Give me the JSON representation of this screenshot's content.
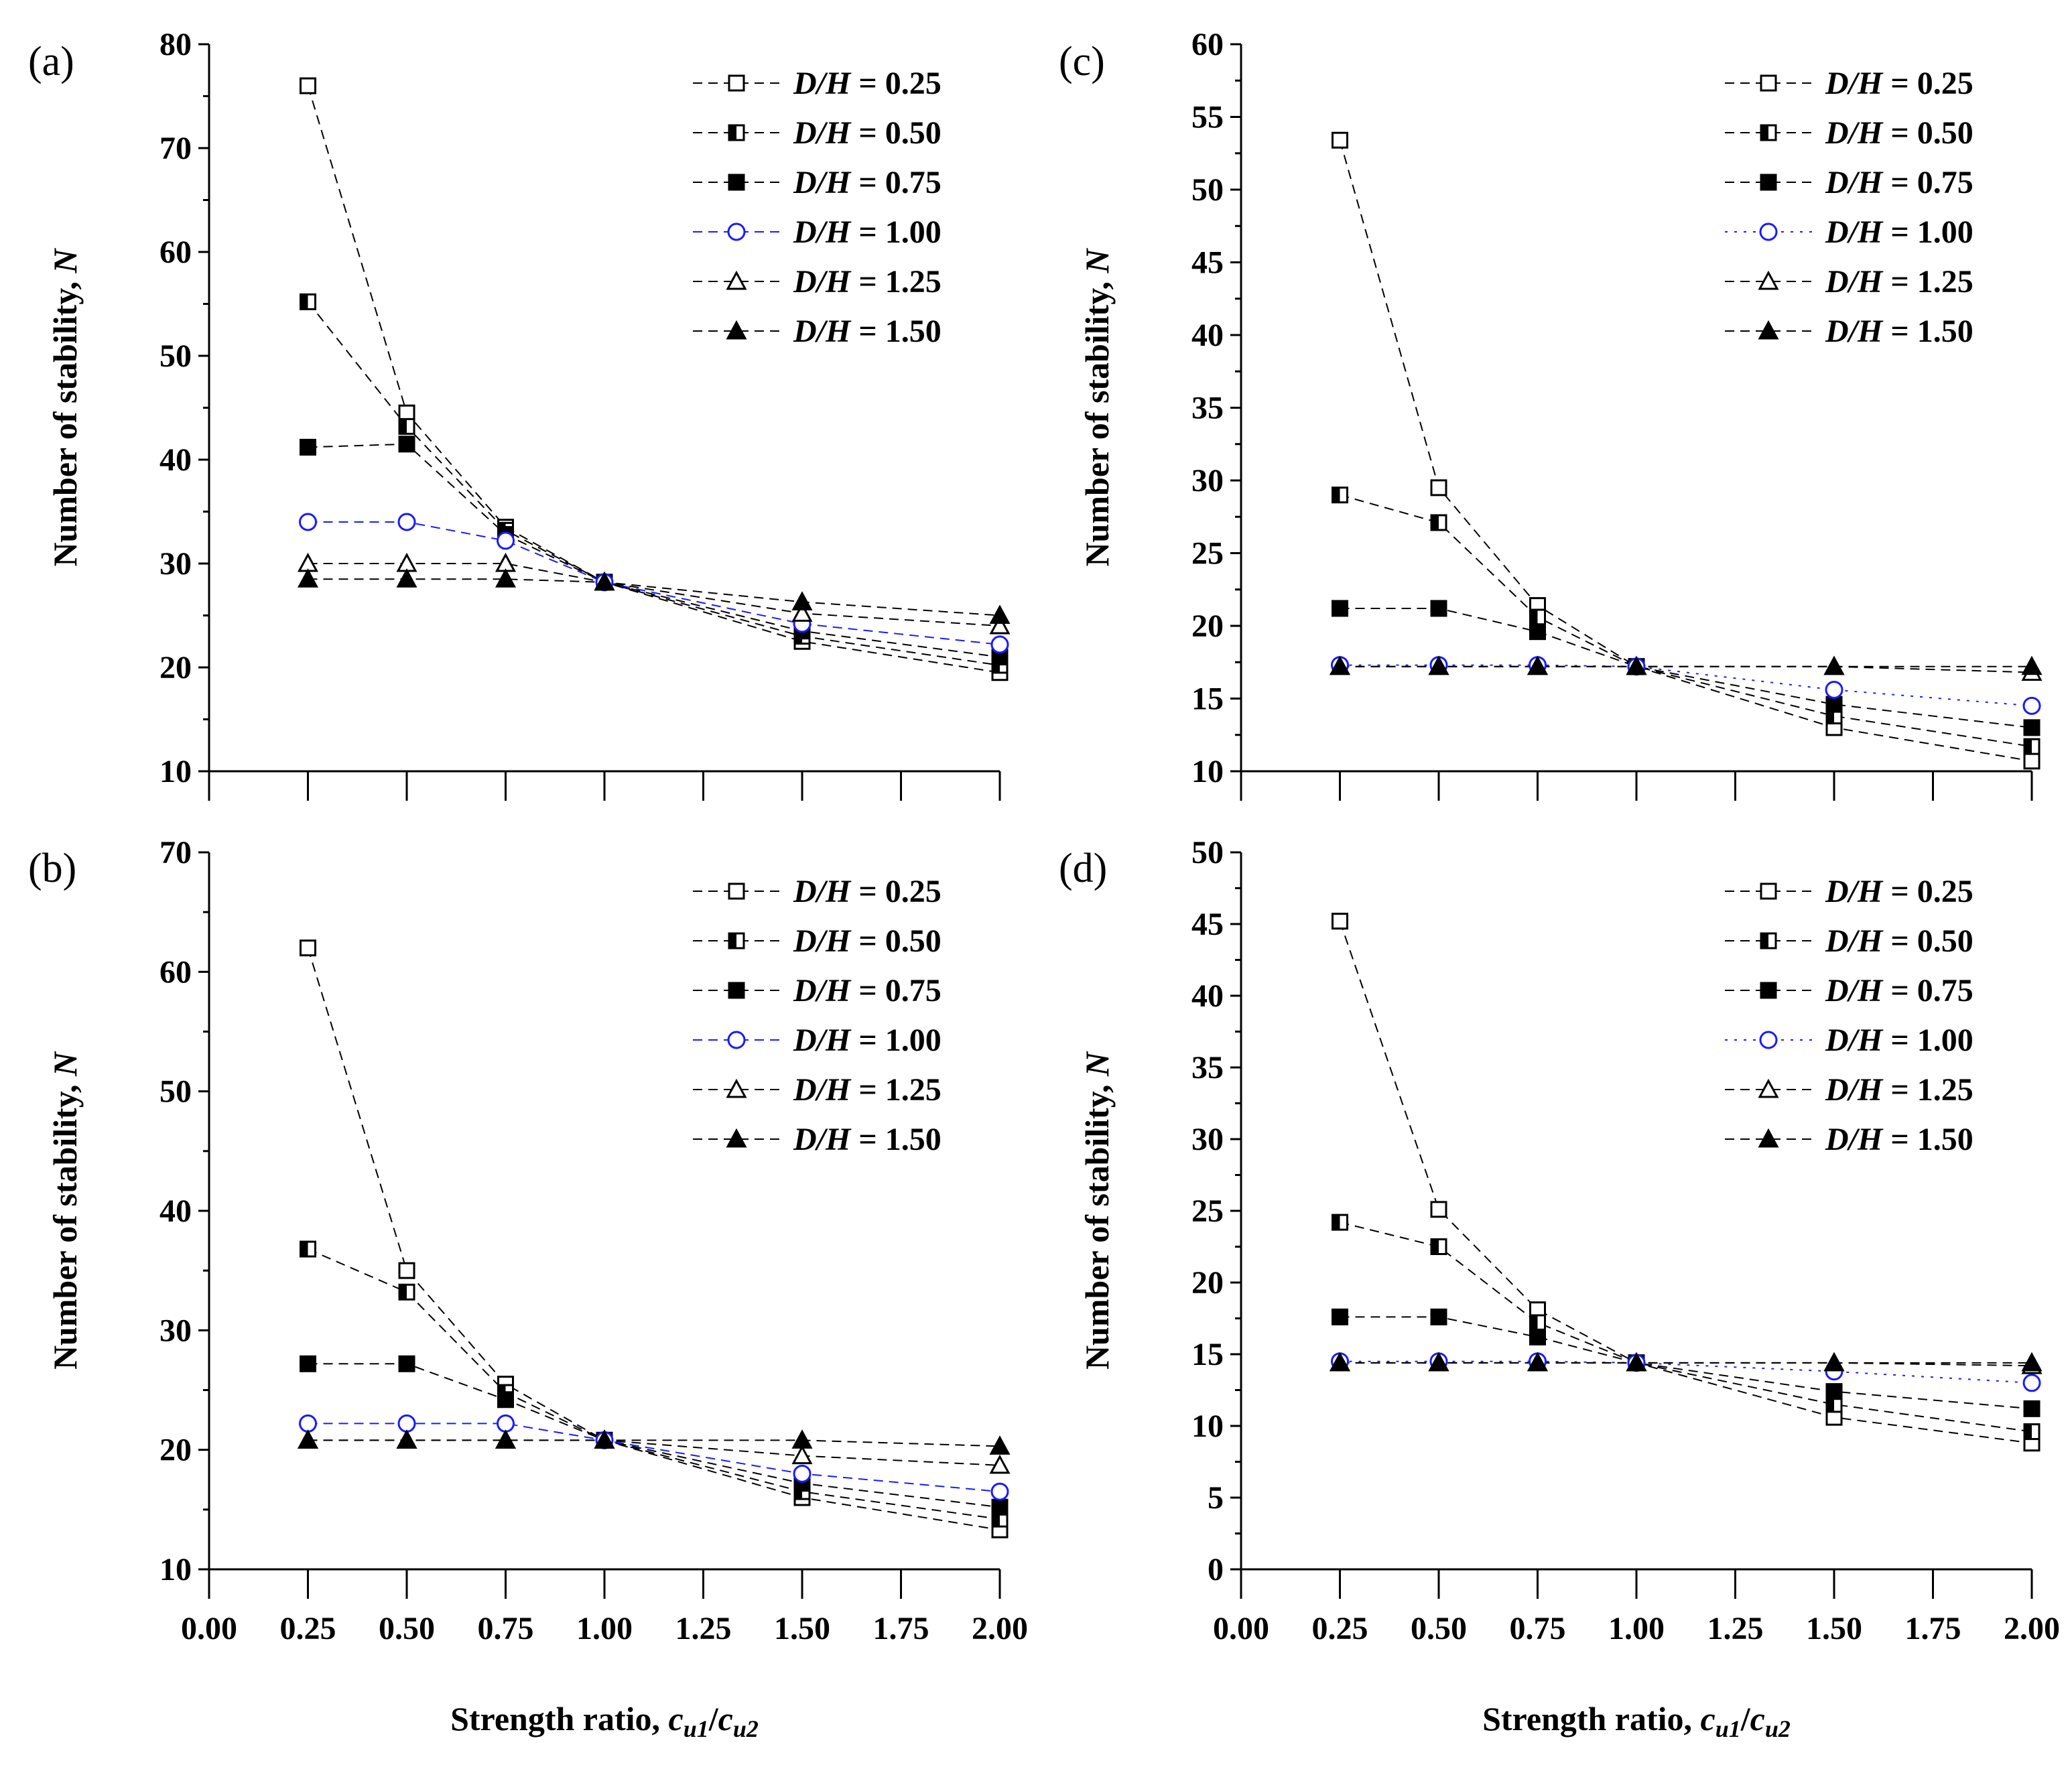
{
  "figure": {
    "y_axis_title": "Number of stability, ",
    "y_axis_symbol": "N",
    "x_axis_title": "Strength ratio, ",
    "x_axis_symbol_num": "c",
    "x_axis_sub_num": "u1",
    "x_axis_slash": "/",
    "x_axis_symbol_den": "c",
    "x_axis_sub_den": "u2",
    "legend_var_D": "D",
    "legend_var_slash": "/",
    "legend_var_H": "H",
    "legend_eq": " = "
  },
  "chart_data": [
    {
      "type": "line",
      "panel": "(a)",
      "xlabel": "Strength ratio, cu1/cu2",
      "ylabel": "Number of stability, N",
      "xlim": [
        0,
        2
      ],
      "ylim": [
        10,
        80
      ],
      "yticks": [
        "10",
        "20",
        "30",
        "40",
        "50",
        "60",
        "70",
        "80"
      ],
      "x": [
        0.25,
        0.5,
        0.75,
        1.0,
        1.5,
        2.0
      ],
      "series": [
        {
          "name": "0.25",
          "values": [
            76.0,
            44.5,
            33.5,
            28.2,
            22.5,
            19.5
          ]
        },
        {
          "name": "0.50",
          "values": [
            55.2,
            43.2,
            33.2,
            28.2,
            23.0,
            20.2
          ]
        },
        {
          "name": "0.75",
          "values": [
            41.2,
            41.5,
            32.8,
            28.2,
            23.5,
            21.0
          ]
        },
        {
          "name": "1.00",
          "values": [
            34.0,
            34.0,
            32.2,
            28.2,
            24.2,
            22.2
          ]
        },
        {
          "name": "1.25",
          "values": [
            30.0,
            30.0,
            30.0,
            28.2,
            25.2,
            24.0
          ]
        },
        {
          "name": "1.50",
          "values": [
            28.5,
            28.5,
            28.5,
            28.2,
            26.3,
            25.0
          ]
        }
      ]
    },
    {
      "type": "line",
      "panel": "(b)",
      "xlabel": "Strength ratio, cu1/cu2",
      "ylabel": "Number of stability, N",
      "xlim": [
        0,
        2
      ],
      "ylim": [
        10,
        70
      ],
      "yticks": [
        "10",
        "20",
        "30",
        "40",
        "50",
        "60",
        "70"
      ],
      "x": [
        0.25,
        0.5,
        0.75,
        1.0,
        1.5,
        2.0
      ],
      "series": [
        {
          "name": "0.25",
          "values": [
            62.0,
            35.0,
            25.5,
            20.8,
            16.0,
            13.3
          ]
        },
        {
          "name": "0.50",
          "values": [
            36.8,
            33.2,
            24.8,
            20.8,
            16.5,
            14.2
          ]
        },
        {
          "name": "0.75",
          "values": [
            27.2,
            27.2,
            24.2,
            20.8,
            17.2,
            15.2
          ]
        },
        {
          "name": "1.00",
          "values": [
            22.2,
            22.2,
            22.2,
            20.8,
            18.0,
            16.5
          ]
        },
        {
          "name": "1.25",
          "values": [
            20.8,
            20.8,
            20.8,
            20.8,
            19.5,
            18.7
          ]
        },
        {
          "name": "1.50",
          "values": [
            20.8,
            20.8,
            20.8,
            20.8,
            20.8,
            20.3
          ]
        }
      ]
    },
    {
      "type": "line",
      "panel": "(c)",
      "xlabel": "Strength ratio, cu1/cu2",
      "ylabel": "Number of stability, N",
      "xlim": [
        0,
        2
      ],
      "ylim": [
        10,
        60
      ],
      "yticks": [
        "10",
        "15",
        "20",
        "25",
        "30",
        "35",
        "40",
        "45",
        "50",
        "55",
        "60"
      ],
      "x": [
        0.25,
        0.5,
        0.75,
        1.0,
        1.5,
        2.0
      ],
      "series": [
        {
          "name": "0.25",
          "values": [
            53.4,
            29.5,
            21.4,
            17.2,
            13.0,
            10.7
          ]
        },
        {
          "name": "0.50",
          "values": [
            29.0,
            27.1,
            20.6,
            17.2,
            13.8,
            11.7
          ]
        },
        {
          "name": "0.75",
          "values": [
            21.2,
            21.2,
            19.6,
            17.2,
            14.6,
            13.0
          ]
        },
        {
          "name": "1.00",
          "values": [
            17.3,
            17.3,
            17.3,
            17.2,
            15.6,
            14.5
          ]
        },
        {
          "name": "1.25",
          "values": [
            17.2,
            17.2,
            17.2,
            17.2,
            17.2,
            16.8
          ]
        },
        {
          "name": "1.50",
          "values": [
            17.2,
            17.2,
            17.2,
            17.2,
            17.2,
            17.2
          ]
        }
      ]
    },
    {
      "type": "line",
      "panel": "(d)",
      "xlabel": "Strength ratio, cu1/cu2",
      "ylabel": "Number of stability, N",
      "xlim": [
        0,
        2
      ],
      "ylim": [
        0,
        50
      ],
      "yticks": [
        "0",
        "5",
        "10",
        "15",
        "20",
        "25",
        "30",
        "35",
        "40",
        "45",
        "50"
      ],
      "xticks": [
        "0.00",
        "0.25",
        "0.50",
        "0.75",
        "1.00",
        "1.25",
        "1.50",
        "1.75",
        "2.00"
      ],
      "x": [
        0.25,
        0.5,
        0.75,
        1.0,
        1.5,
        2.0
      ],
      "series": [
        {
          "name": "0.25",
          "values": [
            45.2,
            25.1,
            18.1,
            14.4,
            10.6,
            8.8
          ]
        },
        {
          "name": "0.50",
          "values": [
            24.2,
            22.5,
            17.2,
            14.4,
            11.5,
            9.6
          ]
        },
        {
          "name": "0.75",
          "values": [
            17.6,
            17.6,
            16.2,
            14.4,
            12.4,
            11.2
          ]
        },
        {
          "name": "1.00",
          "values": [
            14.5,
            14.5,
            14.5,
            14.4,
            13.8,
            13.0
          ]
        },
        {
          "name": "1.25",
          "values": [
            14.4,
            14.4,
            14.4,
            14.4,
            14.4,
            14.2
          ]
        },
        {
          "name": "1.50",
          "values": [
            14.4,
            14.4,
            14.4,
            14.4,
            14.4,
            14.4
          ]
        }
      ]
    }
  ],
  "styles": {
    "series_colors": [
      "#000000",
      "#000000",
      "#000000",
      "#1a1aff",
      "#000000",
      "#000000"
    ],
    "series_markers": [
      "square-open",
      "square-half",
      "square-filled",
      "circle-open",
      "triangle-open",
      "triangle-filled"
    ]
  }
}
